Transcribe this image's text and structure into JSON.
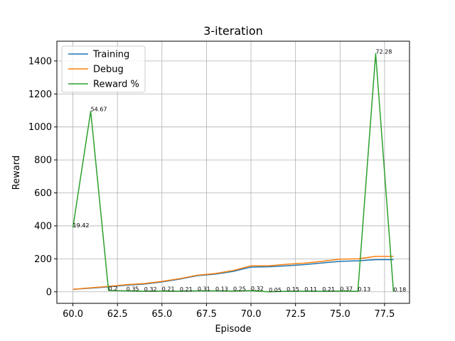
{
  "chart_data": {
    "type": "line",
    "title": "3-iteration",
    "xlabel": "Episode",
    "ylabel": "Reward",
    "xlim": [
      59.1,
      78.9
    ],
    "ylim": [
      -70,
      1520
    ],
    "xticks": [
      60.0,
      62.5,
      65.0,
      67.5,
      70.0,
      72.5,
      75.0,
      77.5
    ],
    "xtick_labels": [
      "60.0",
      "62.5",
      "65.0",
      "67.5",
      "70.0",
      "72.5",
      "75.0",
      "77.5"
    ],
    "yticks": [
      0,
      200,
      400,
      600,
      800,
      1000,
      1200,
      1400
    ],
    "ytick_labels": [
      "0",
      "200",
      "400",
      "600",
      "800",
      "1000",
      "1200",
      "1400"
    ],
    "grid": true,
    "legend_position": "top-left",
    "x": [
      60,
      61,
      62,
      63,
      64,
      65,
      66,
      67,
      68,
      69,
      70,
      71,
      72,
      73,
      74,
      75,
      76,
      77,
      78
    ],
    "series": [
      {
        "name": "Training",
        "color": "#1f77b4",
        "values": [
          15,
          22,
          30,
          40,
          47,
          60,
          77,
          98,
          107,
          124,
          150,
          152,
          158,
          165,
          175,
          185,
          188,
          195,
          195
        ]
      },
      {
        "name": "Debug",
        "color": "#ff7f0e",
        "values": [
          15,
          24,
          33,
          43,
          50,
          63,
          80,
          101,
          111,
          129,
          158,
          158,
          167,
          174,
          185,
          198,
          200,
          215,
          215
        ]
      },
      {
        "name": "Reward %",
        "color": "#2ca02c",
        "values": [
          390,
          1095,
          8,
          6,
          4,
          5,
          4,
          6,
          6,
          5,
          7,
          0,
          3,
          4,
          3,
          5,
          3,
          1445,
          1
        ]
      }
    ],
    "annotations": [
      {
        "x": 60,
        "y": 390,
        "text": "19.42"
      },
      {
        "x": 61,
        "y": 1095,
        "text": "54.67"
      },
      {
        "x": 62,
        "y": 8,
        "text": "0.2"
      },
      {
        "x": 63,
        "y": 6,
        "text": "0.35"
      },
      {
        "x": 64,
        "y": 4,
        "text": "0.32"
      },
      {
        "x": 65,
        "y": 5,
        "text": "0.21"
      },
      {
        "x": 66,
        "y": 4,
        "text": "0.21"
      },
      {
        "x": 67,
        "y": 6,
        "text": "0.31"
      },
      {
        "x": 68,
        "y": 6,
        "text": "0.13"
      },
      {
        "x": 69,
        "y": 5,
        "text": "0.25"
      },
      {
        "x": 70,
        "y": 7,
        "text": "0.32"
      },
      {
        "x": 71,
        "y": 0,
        "text": "0.05"
      },
      {
        "x": 72,
        "y": 3,
        "text": "0.15"
      },
      {
        "x": 73,
        "y": 4,
        "text": "0.11"
      },
      {
        "x": 74,
        "y": 3,
        "text": "0.21"
      },
      {
        "x": 75,
        "y": 5,
        "text": "0.37"
      },
      {
        "x": 76,
        "y": 3,
        "text": "0.13"
      },
      {
        "x": 77,
        "y": 1445,
        "text": "72.28"
      },
      {
        "x": 78,
        "y": 1,
        "text": "0.18"
      }
    ]
  }
}
